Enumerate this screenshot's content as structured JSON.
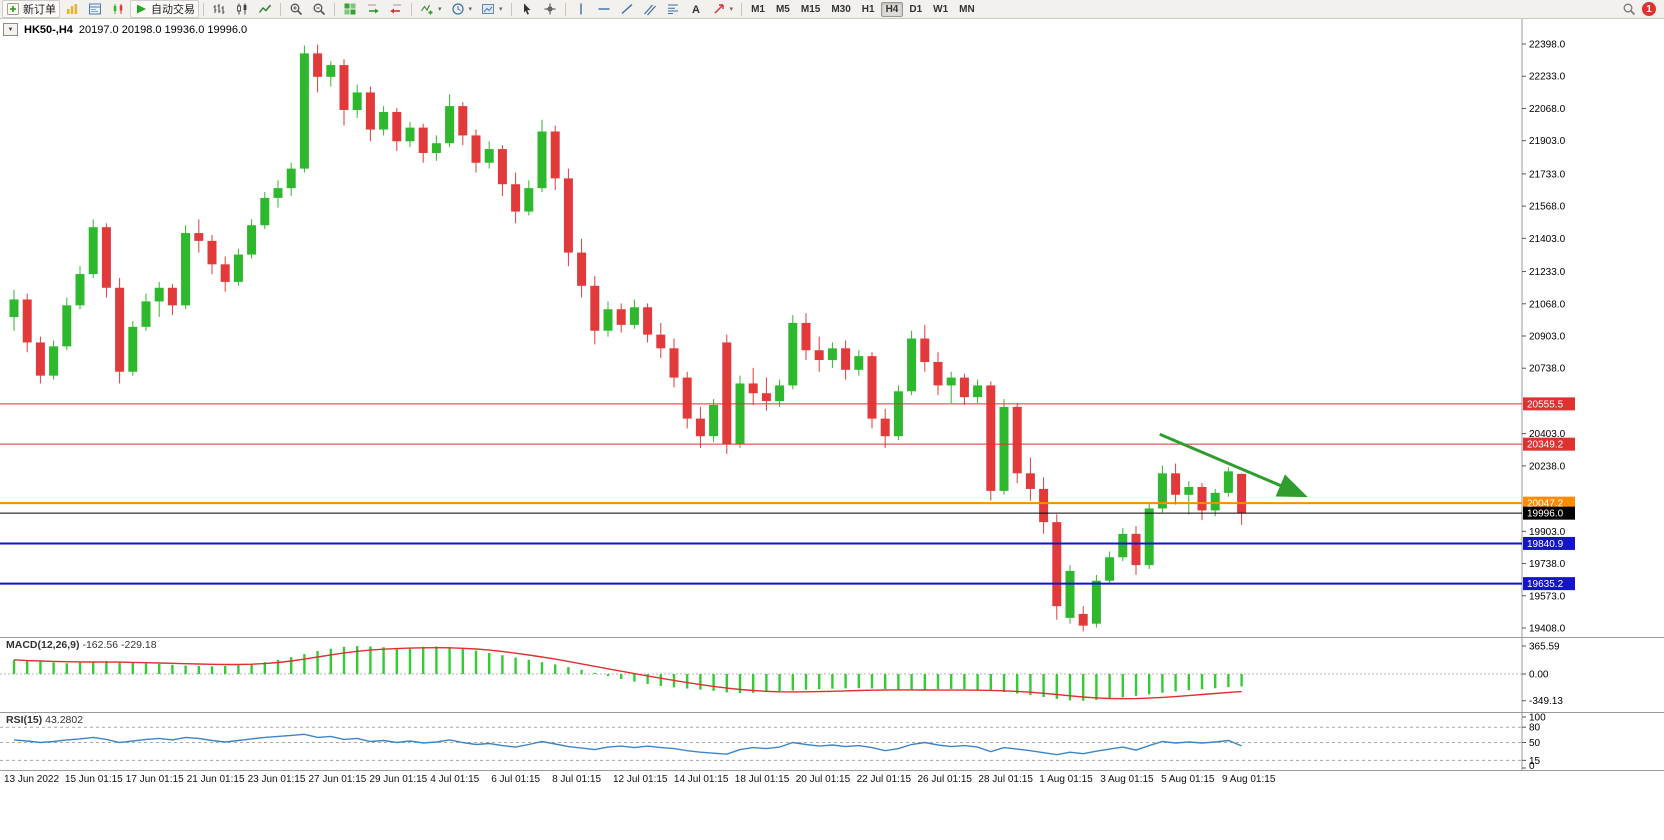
{
  "toolbar": {
    "new_order_label": "新订单",
    "auto_trading_label": "自动交易",
    "timeframes": [
      "M1",
      "M5",
      "M15",
      "M30",
      "H1",
      "H4",
      "D1",
      "W1",
      "MN"
    ],
    "active_timeframe": "H4",
    "notification_count": "1",
    "icons": {
      "one_click_toggle": "▼",
      "auto_trading_play": "▶",
      "dropdown_caret": "▾"
    }
  },
  "chart_data": {
    "type": "candlestick",
    "symbol": "HK50-",
    "timeframe": "H4",
    "title": "HK50-,H4",
    "ohlc_line": "20197.0 20198.0 19936.0 19996.0",
    "last_bar": {
      "open": 20197.0,
      "high": 20198.0,
      "low": 19936.0,
      "close": 19996.0
    },
    "price_axis_ticks": [
      "22398.0",
      "22233.0",
      "22068.0",
      "21903.0",
      "21733.0",
      "21568.0",
      "21403.0",
      "21233.0",
      "21068.0",
      "20903.0",
      "20738.0",
      "20403.0",
      "20238.0",
      "19903.0",
      "19738.0",
      "19573.0",
      "19408.0"
    ],
    "hlines": [
      {
        "price": 20555.5,
        "label": "20555.5",
        "color": "#e03131",
        "width": 1
      },
      {
        "price": 20349.2,
        "label": "20349.2",
        "color": "#e03131",
        "width": 1
      },
      {
        "price": 20047.2,
        "label": "20047.2",
        "color": "#ff8c00",
        "width": 2
      },
      {
        "price": 19996.0,
        "label": "19996.0",
        "color": "#000000",
        "width": 1
      },
      {
        "price": 19840.9,
        "label": "19840.9",
        "color": "#1414cc",
        "width": 2
      },
      {
        "price": 19635.2,
        "label": "19635.2",
        "color": "#1414cc",
        "width": 2
      }
    ],
    "trend_arrow": {
      "from_index": 86.8,
      "from_price": 20400,
      "to_index": 97.6,
      "to_price": 20090,
      "color": "#2f9e2f"
    },
    "time_axis_labels": [
      "13 Jun 2022",
      "15 Jun 01:15",
      "17 Jun 01:15",
      "21 Jun 01:15",
      "23 Jun 01:15",
      "27 Jun 01:15",
      "29 Jun 01:15",
      "4 Jul 01:15",
      "6 Jul 01:15",
      "8 Jul 01:15",
      "12 Jul 01:15",
      "14 Jul 01:15",
      "18 Jul 01:15",
      "20 Jul 01:15",
      "22 Jul 01:15",
      "26 Jul 01:15",
      "28 Jul 01:15",
      "1 Aug 01:15",
      "3 Aug 01:15",
      "5 Aug 01:15",
      "9 Aug 01:15"
    ],
    "candles": [
      [
        21000,
        21140,
        20930,
        21090
      ],
      [
        21090,
        21120,
        20820,
        20870
      ],
      [
        20870,
        20900,
        20660,
        20700
      ],
      [
        20700,
        20880,
        20680,
        20850
      ],
      [
        20850,
        21100,
        20830,
        21060
      ],
      [
        21060,
        21260,
        21040,
        21220
      ],
      [
        21220,
        21500,
        21200,
        21460
      ],
      [
        21460,
        21480,
        21100,
        21150
      ],
      [
        21150,
        21200,
        20660,
        20720
      ],
      [
        20720,
        20980,
        20700,
        20950
      ],
      [
        20950,
        21120,
        20930,
        21080
      ],
      [
        21080,
        21180,
        21000,
        21150
      ],
      [
        21150,
        21170,
        21010,
        21060
      ],
      [
        21060,
        21470,
        21040,
        21430
      ],
      [
        21430,
        21500,
        21330,
        21390
      ],
      [
        21390,
        21420,
        21220,
        21270
      ],
      [
        21270,
        21310,
        21130,
        21180
      ],
      [
        21180,
        21350,
        21160,
        21320
      ],
      [
        21320,
        21500,
        21300,
        21470
      ],
      [
        21470,
        21640,
        21450,
        21610
      ],
      [
        21610,
        21700,
        21560,
        21660
      ],
      [
        21660,
        21790,
        21620,
        21760
      ],
      [
        21760,
        22390,
        21740,
        22350
      ],
      [
        22350,
        22395,
        22150,
        22230
      ],
      [
        22230,
        22310,
        22180,
        22290
      ],
      [
        22290,
        22320,
        21980,
        22060
      ],
      [
        22060,
        22190,
        22020,
        22150
      ],
      [
        22150,
        22180,
        21900,
        21960
      ],
      [
        21960,
        22080,
        21930,
        22050
      ],
      [
        22050,
        22070,
        21850,
        21900
      ],
      [
        21900,
        22000,
        21870,
        21970
      ],
      [
        21970,
        21990,
        21790,
        21840
      ],
      [
        21840,
        21930,
        21800,
        21890
      ],
      [
        21890,
        22140,
        21870,
        22080
      ],
      [
        22080,
        22100,
        21880,
        21930
      ],
      [
        21930,
        21960,
        21740,
        21790
      ],
      [
        21790,
        21900,
        21760,
        21860
      ],
      [
        21860,
        21880,
        21620,
        21680
      ],
      [
        21680,
        21740,
        21480,
        21540
      ],
      [
        21540,
        21700,
        21520,
        21660
      ],
      [
        21660,
        22010,
        21640,
        21950
      ],
      [
        21950,
        21980,
        21650,
        21710
      ],
      [
        21710,
        21760,
        21260,
        21330
      ],
      [
        21330,
        21400,
        21100,
        21160
      ],
      [
        21160,
        21210,
        20860,
        20930
      ],
      [
        20930,
        21080,
        20900,
        21040
      ],
      [
        21040,
        21070,
        20920,
        20960
      ],
      [
        20960,
        21090,
        20940,
        21050
      ],
      [
        21050,
        21070,
        20870,
        20910
      ],
      [
        20910,
        20970,
        20790,
        20840
      ],
      [
        20840,
        20890,
        20640,
        20690
      ],
      [
        20690,
        20720,
        20430,
        20480
      ],
      [
        20480,
        20540,
        20330,
        20390
      ],
      [
        20390,
        20580,
        20360,
        20550
      ],
      [
        20870,
        20910,
        20300,
        20350
      ],
      [
        20350,
        20700,
        20330,
        20660
      ],
      [
        20660,
        20740,
        20550,
        20610
      ],
      [
        20610,
        20690,
        20520,
        20570
      ],
      [
        20570,
        20680,
        20540,
        20650
      ],
      [
        20650,
        21010,
        20630,
        20970
      ],
      [
        20970,
        21020,
        20780,
        20830
      ],
      [
        20830,
        20900,
        20720,
        20780
      ],
      [
        20780,
        20870,
        20740,
        20840
      ],
      [
        20840,
        20880,
        20680,
        20730
      ],
      [
        20730,
        20830,
        20700,
        20800
      ],
      [
        20800,
        20820,
        20430,
        20480
      ],
      [
        20480,
        20530,
        20330,
        20390
      ],
      [
        20390,
        20650,
        20370,
        20620
      ],
      [
        20620,
        20930,
        20600,
        20890
      ],
      [
        20890,
        20960,
        20720,
        20770
      ],
      [
        20770,
        20820,
        20600,
        20650
      ],
      [
        20650,
        20720,
        20560,
        20690
      ],
      [
        20690,
        20710,
        20550,
        20590
      ],
      [
        20590,
        20680,
        20560,
        20650
      ],
      [
        20650,
        20670,
        20060,
        20110
      ],
      [
        20110,
        20580,
        20090,
        20540
      ],
      [
        20540,
        20560,
        20150,
        20200
      ],
      [
        20200,
        20280,
        20060,
        20120
      ],
      [
        20120,
        20180,
        19890,
        19950
      ],
      [
        19950,
        19990,
        19450,
        19520
      ],
      [
        19460,
        19730,
        19430,
        19700
      ],
      [
        19480,
        19520,
        19390,
        19420
      ],
      [
        19430,
        19680,
        19410,
        19650
      ],
      [
        19650,
        19800,
        19630,
        19770
      ],
      [
        19770,
        19920,
        19750,
        19890
      ],
      [
        19890,
        19930,
        19680,
        19730
      ],
      [
        19730,
        20050,
        19710,
        20020
      ],
      [
        20020,
        20240,
        20000,
        20200
      ],
      [
        20200,
        20250,
        20040,
        20090
      ],
      [
        20090,
        20160,
        19990,
        20130
      ],
      [
        20130,
        20150,
        19960,
        20010
      ],
      [
        20010,
        20120,
        19980,
        20100
      ],
      [
        20100,
        20230,
        20080,
        20210
      ],
      [
        20197,
        20198,
        19936,
        19996
      ]
    ],
    "macd": {
      "label": "MACD(12,26,9)",
      "values_text": "-162.56 -229.18",
      "axis_ticks": [
        "365.59",
        "0.00",
        "-349.13"
      ],
      "histogram": [
        180,
        170,
        160,
        150,
        140,
        150,
        160,
        170,
        160,
        150,
        140,
        130,
        120,
        110,
        105,
        100,
        105,
        115,
        130,
        155,
        185,
        220,
        260,
        300,
        330,
        355,
        365,
        360,
        350,
        340,
        345,
        355,
        360,
        350,
        330,
        305,
        275,
        245,
        215,
        185,
        155,
        125,
        90,
        55,
        15,
        -25,
        -65,
        -100,
        -130,
        -155,
        -175,
        -190,
        -205,
        -220,
        -240,
        -250,
        -245,
        -235,
        -225,
        -215,
        -205,
        -198,
        -192,
        -188,
        -185,
        -188,
        -195,
        -205,
        -210,
        -205,
        -198,
        -195,
        -198,
        -205,
        -215,
        -235,
        -255,
        -275,
        -300,
        -325,
        -345,
        -349,
        -340,
        -325,
        -305,
        -285,
        -265,
        -245,
        -228,
        -212,
        -198,
        -185,
        -172,
        -162.56
      ],
      "signal": [
        185,
        175,
        170,
        165,
        160,
        158,
        157,
        156,
        155,
        152,
        148,
        144,
        140,
        135,
        130,
        126,
        124,
        124,
        128,
        136,
        150,
        170,
        195,
        222,
        250,
        275,
        296,
        312,
        324,
        332,
        338,
        342,
        344,
        342,
        336,
        326,
        312,
        294,
        272,
        248,
        222,
        194,
        164,
        132,
        100,
        68,
        36,
        5,
        -25,
        -55,
        -84,
        -112,
        -138,
        -162,
        -184,
        -202,
        -216,
        -226,
        -232,
        -234,
        -233,
        -230,
        -226,
        -221,
        -216,
        -212,
        -209,
        -208,
        -208,
        -209,
        -210,
        -210,
        -210,
        -211,
        -214,
        -219,
        -227,
        -238,
        -252,
        -268,
        -285,
        -300,
        -312,
        -320,
        -323,
        -321,
        -315,
        -306,
        -295,
        -282,
        -268,
        -254,
        -240,
        -229.18
      ]
    },
    "rsi": {
      "label": "RSI(15)",
      "value_text": "43.2802",
      "axis_ticks": [
        "100",
        "80",
        "50",
        "15",
        "0"
      ],
      "levels_dashed": [
        80,
        50,
        15
      ],
      "values": [
        55,
        53,
        50,
        52,
        55,
        57,
        60,
        56,
        50,
        53,
        56,
        58,
        55,
        60,
        58,
        54,
        51,
        54,
        57,
        60,
        62,
        64,
        66,
        60,
        62,
        56,
        58,
        52,
        54,
        50,
        53,
        49,
        51,
        55,
        50,
        46,
        48,
        44,
        41,
        46,
        52,
        47,
        42,
        39,
        36,
        41,
        43,
        40,
        43,
        40,
        38,
        34,
        31,
        29,
        27,
        36,
        40,
        38,
        41,
        50,
        46,
        43,
        45,
        42,
        44,
        40,
        34,
        38,
        46,
        50,
        45,
        42,
        44,
        41,
        32,
        40,
        37,
        34,
        30,
        26,
        31,
        28,
        33,
        37,
        41,
        35,
        44,
        52,
        49,
        51,
        49,
        51,
        54,
        43.28
      ]
    },
    "colors": {
      "up": "#2db82d",
      "down": "#e23a3a",
      "macd_histogram": "#33cc33",
      "macd_signal": "#e03030",
      "rsi_line": "#3d85c8"
    }
  }
}
